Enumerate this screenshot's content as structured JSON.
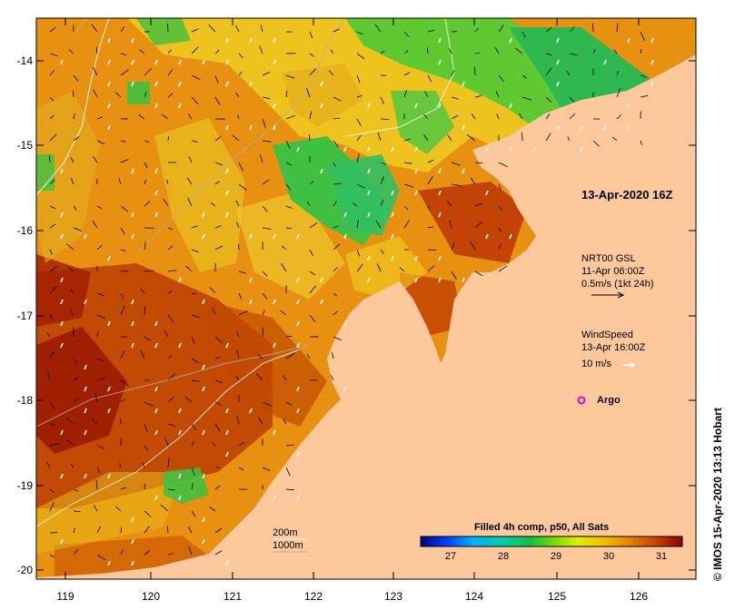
{
  "title_date": "13-Apr-2020 16Z",
  "current_layer": {
    "name": "NRT00 GSL",
    "time": "11-Apr 06:00Z",
    "scale": "0.5m/s (1kt 24h)"
  },
  "wind_layer": {
    "name": "WindSpeed",
    "time": "13-Apr 16:00Z",
    "scale": "10 m/s"
  },
  "argo_label": "Argo",
  "bathymetry": {
    "line1": "200m",
    "line2": "1000m"
  },
  "colorbar": {
    "title": "Filled 4h comp, p50, All Sats",
    "ticks": [
      "27",
      "28",
      "29",
      "30",
      "31"
    ],
    "colors": [
      "#00007f",
      "#0040ff",
      "#00b0ff",
      "#00d0a0",
      "#10c040",
      "#80e000",
      "#e0f000",
      "#f0c000",
      "#e88000",
      "#c84000",
      "#8c0000"
    ]
  },
  "credit": "© IMOS 15-Apr-2020 13:13 Hobart",
  "axes": {
    "y_ticks": [
      "-14",
      "-15",
      "-16",
      "-17",
      "-18",
      "-19",
      "-20"
    ],
    "x_ticks": [
      "119",
      "120",
      "121",
      "122",
      "123",
      "124",
      "125",
      "126"
    ]
  },
  "colors": {
    "land": "#fcc89c",
    "sst_warm": "#e89010",
    "sst_hot": "#b03000",
    "sst_cool": "#20c040",
    "argo": "#e000e0"
  }
}
